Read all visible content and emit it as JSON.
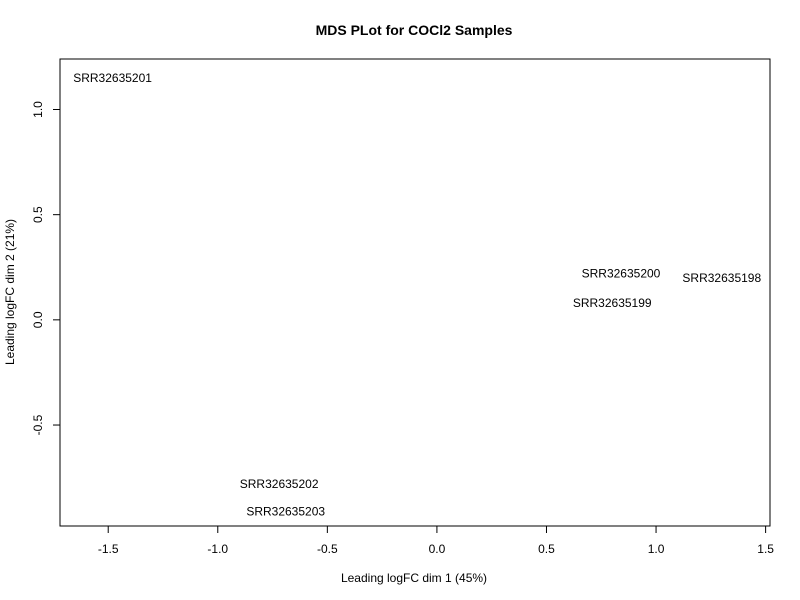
{
  "chart_data": {
    "type": "scatter",
    "title": "MDS PLot for COCl2 Samples",
    "xlabel": "Leading logFC dim 1 (45%)",
    "ylabel": "Leading logFC dim 2 (21%)",
    "xlim": [
      -1.72,
      1.52
    ],
    "ylim": [
      -0.98,
      1.24
    ],
    "xticks": [
      -1.5,
      -1.0,
      -0.5,
      0.0,
      0.5,
      1.0,
      1.5
    ],
    "xtick_labels": [
      "-1.5",
      "-1.0",
      "-0.5",
      "0.0",
      "0.5",
      "1.0",
      "1.5"
    ],
    "yticks": [
      -0.5,
      0.0,
      0.5,
      1.0
    ],
    "ytick_labels": [
      "-0.5",
      "0.0",
      "0.5",
      "1.0"
    ],
    "grid": false,
    "points": [
      {
        "label": "SRR32635201",
        "x": -1.48,
        "y": 1.15
      },
      {
        "label": "SRR32635200",
        "x": 0.84,
        "y": 0.22
      },
      {
        "label": "SRR32635198",
        "x": 1.3,
        "y": 0.2
      },
      {
        "label": "SRR32635199",
        "x": 0.8,
        "y": 0.08
      },
      {
        "label": "SRR32635202",
        "x": -0.72,
        "y": -0.78
      },
      {
        "label": "SRR32635203",
        "x": -0.69,
        "y": -0.91
      }
    ]
  }
}
